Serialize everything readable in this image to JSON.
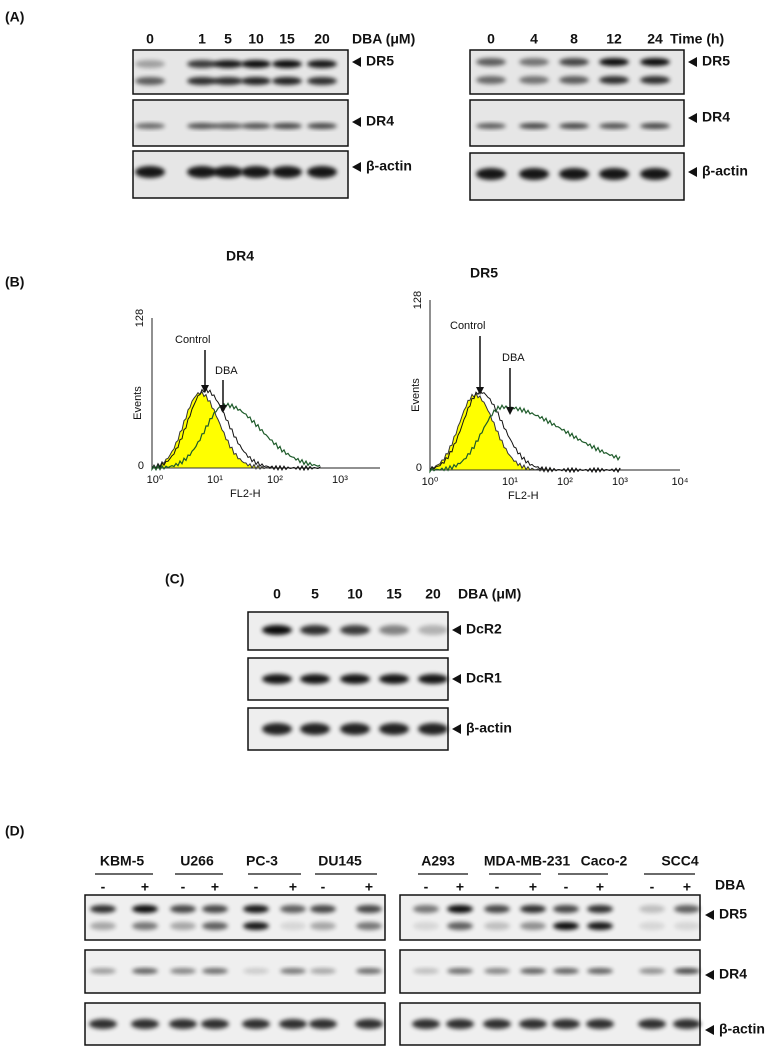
{
  "panels": {
    "a": {
      "label": "(A)",
      "left": {
        "lanes": [
          "0",
          "1",
          "5",
          "10",
          "15",
          "20"
        ],
        "condition": "DBA (μM)",
        "blots": [
          "DR5",
          "DR4",
          "β-actin"
        ]
      },
      "right": {
        "lanes": [
          "0",
          "4",
          "8",
          "12",
          "24"
        ],
        "condition": "Time (h)",
        "blots": [
          "DR5",
          "DR4",
          "β-actin"
        ]
      }
    },
    "b": {
      "label": "(B)",
      "plots": [
        {
          "title": "DR4",
          "y_axis": "Events",
          "y_top": "128",
          "y_bottom": "0",
          "x_axis": "FL2-H",
          "x_ticks": [
            "10⁰",
            "10¹",
            "10²",
            "10³"
          ],
          "arrows": [
            "Control",
            "DBA"
          ]
        },
        {
          "title": "DR5",
          "y_axis": "Events",
          "y_top": "128",
          "y_bottom": "0",
          "x_axis": "FL2-H",
          "x_ticks": [
            "10⁰",
            "10¹",
            "10²",
            "10³",
            "10⁴"
          ],
          "arrows": [
            "Control",
            "DBA"
          ]
        }
      ]
    },
    "c": {
      "label": "(C)",
      "lanes": [
        "0",
        "5",
        "10",
        "15",
        "20"
      ],
      "condition": "DBA (μM)",
      "blots": [
        "DcR2",
        "DcR1",
        "β-actin"
      ]
    },
    "d": {
      "label": "(D)",
      "condition": "DBA",
      "left_groups": [
        {
          "name": "KBM-5",
          "signs": [
            "-",
            "+"
          ]
        },
        {
          "name": "U266",
          "signs": [
            "-",
            "+"
          ]
        },
        {
          "name": "PC-3",
          "signs": [
            "-",
            "+"
          ]
        },
        {
          "name": "DU145",
          "signs": [
            "-",
            "+"
          ]
        }
      ],
      "right_groups": [
        {
          "name": "A293",
          "signs": [
            "-",
            "+"
          ]
        },
        {
          "name": "MDA-MB-231",
          "signs": [
            "-",
            "+"
          ]
        },
        {
          "name": "Caco-2",
          "signs": [
            "-",
            "+"
          ]
        },
        {
          "name": "SCC4",
          "signs": [
            "-",
            "+"
          ]
        }
      ],
      "blots": [
        "DR5",
        "DR4",
        "β-actin"
      ]
    }
  }
}
